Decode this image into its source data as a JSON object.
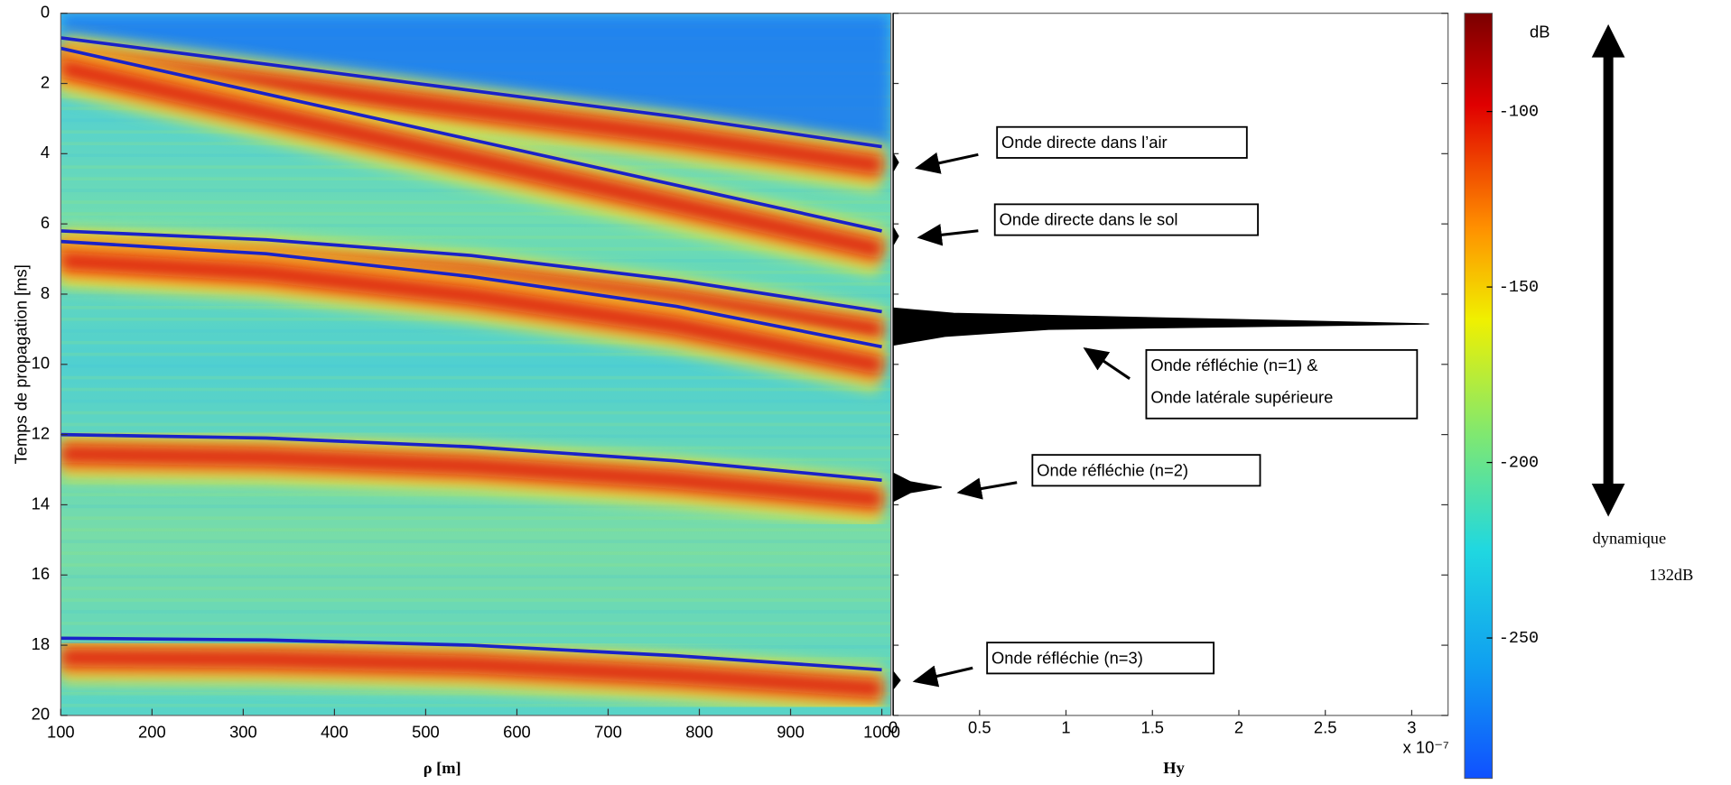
{
  "chart_data": [
    {
      "type": "heatmap",
      "x_label": "ρ [m]",
      "y_label": "Temps de propagation [ms]",
      "xlim": [
        100,
        1010
      ],
      "ylim": [
        0,
        20
      ],
      "y_inverted": true,
      "xticks": [
        100,
        200,
        300,
        400,
        500,
        600,
        700,
        800,
        900,
        1000
      ],
      "yticks": [
        0,
        2,
        4,
        6,
        8,
        10,
        12,
        14,
        16,
        18,
        20
      ],
      "x": [
        100,
        325,
        550,
        775,
        1000
      ],
      "series": [
        {
          "color": "#1a22c8",
          "values": [
            0.7,
            1.45,
            2.2,
            2.95,
            3.8
          ]
        },
        {
          "color": "#1a22c8",
          "values": [
            1.0,
            2.3,
            3.6,
            4.9,
            6.2
          ]
        },
        {
          "color": "#1a22c8",
          "values": [
            6.2,
            6.45,
            6.9,
            7.6,
            8.5
          ]
        },
        {
          "color": "#1a22c8",
          "values": [
            6.5,
            6.85,
            7.5,
            8.35,
            9.5
          ]
        },
        {
          "color": "#1a22c8",
          "values": [
            12.0,
            12.1,
            12.35,
            12.75,
            13.3
          ]
        },
        {
          "color": "#1a22c8",
          "values": [
            17.8,
            17.85,
            18.0,
            18.3,
            18.7
          ]
        }
      ]
    },
    {
      "type": "area",
      "x_label": "Hy",
      "x_multiplier": "x 10⁻⁷",
      "xlim": [
        0,
        3.21
      ],
      "ylim": [
        0,
        20
      ],
      "y_inverted": true,
      "xticks": [
        0,
        0.5,
        1,
        1.5,
        2,
        2.5,
        3
      ],
      "yticks": [
        0,
        2,
        4,
        6,
        8,
        10,
        12,
        14,
        16,
        18,
        20
      ],
      "color": "#000000",
      "y": [
        0,
        4.0,
        4.25,
        4.5,
        6.1,
        6.35,
        6.6,
        8.4,
        8.55,
        8.75,
        8.85,
        9.0,
        9.2,
        9.45,
        13.1,
        13.35,
        13.5,
        13.65,
        13.9,
        18.75,
        19.0,
        19.25,
        20
      ],
      "values": [
        0,
        0,
        0.03,
        0,
        0,
        0.03,
        0,
        0,
        0.35,
        2.2,
        3.1,
        0.9,
        0.3,
        0,
        0,
        0.1,
        0.28,
        0.1,
        0,
        0,
        0.04,
        0,
        0
      ],
      "annotations": [
        [
          "Onde directe dans l’air"
        ],
        [
          "Onde directe dans le sol"
        ],
        [
          "Onde réfléchie (n=1) &",
          "Onde latérale supérieure"
        ],
        [
          "Onde réfléchie (n=2)"
        ],
        [
          "Onde réfléchie (n=3)"
        ]
      ]
    },
    {
      "type": "colorbar",
      "title": "dB",
      "colormap": "jet",
      "clim": [
        -290,
        -72
      ],
      "ticks": [
        -100,
        -150,
        -200,
        -250
      ],
      "annotation": [
        "dynamique",
        "132dB"
      ]
    }
  ]
}
